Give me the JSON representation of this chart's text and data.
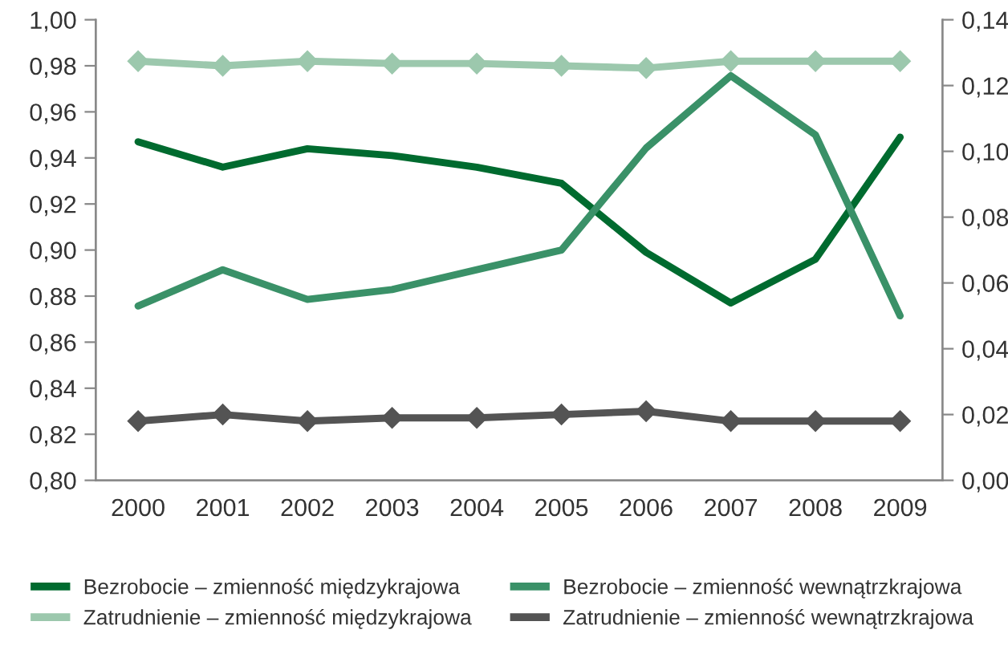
{
  "chart_data": {
    "type": "line",
    "categories": [
      "2000",
      "2001",
      "2002",
      "2003",
      "2004",
      "2005",
      "2006",
      "2007",
      "2008",
      "2009"
    ],
    "series": [
      {
        "name": "Bezrobocie – zmienność międzykrajowa",
        "color": "#006b2f",
        "marker": "none",
        "values": [
          0.947,
          0.936,
          0.944,
          0.941,
          0.936,
          0.929,
          0.899,
          0.877,
          0.896,
          0.949
        ]
      },
      {
        "name": "Bezrobocie – zmienność wewnątrzkrajowa",
        "color": "#3a9168",
        "marker": "none",
        "axis": "y2",
        "values": [
          0.053,
          0.064,
          0.055,
          0.058,
          0.064,
          0.07,
          0.101,
          0.123,
          0.105,
          0.05
        ]
      },
      {
        "name": "Zatrudnienie – zmienność międzykrajowa",
        "color": "#9cc8ad",
        "marker": "diamond",
        "values": [
          0.982,
          0.98,
          0.982,
          0.981,
          0.981,
          0.98,
          0.979,
          0.982,
          0.982,
          0.982
        ]
      },
      {
        "name": "Zatrudnienie – zmienność wewnątrzkrajowa",
        "color": "#545454",
        "marker": "diamond",
        "axis": "y2",
        "values": [
          0.018,
          0.02,
          0.018,
          0.019,
          0.019,
          0.02,
          0.021,
          0.018,
          0.018,
          0.018
        ]
      }
    ],
    "ylim": [
      0.8,
      1.0
    ],
    "yticks": [
      {
        "value": 0.8,
        "label": "0,80"
      },
      {
        "value": 0.82,
        "label": "0,82"
      },
      {
        "value": 0.84,
        "label": "0,84"
      },
      {
        "value": 0.86,
        "label": "0,86"
      },
      {
        "value": 0.88,
        "label": "0,88"
      },
      {
        "value": 0.9,
        "label": "0,90"
      },
      {
        "value": 0.92,
        "label": "0,92"
      },
      {
        "value": 0.94,
        "label": "0,94"
      },
      {
        "value": 0.96,
        "label": "0,96"
      },
      {
        "value": 0.98,
        "label": "0,98"
      },
      {
        "value": 1.0,
        "label": "1,00"
      }
    ],
    "y2lim": [
      0,
      0.14
    ],
    "y2ticks": [
      {
        "value": 0,
        "label": "0,00"
      },
      {
        "value": 0.02,
        "label": "0,02"
      },
      {
        "value": 0.04,
        "label": "0,04"
      },
      {
        "value": 0.06,
        "label": "0,06"
      },
      {
        "value": 0.08,
        "label": "0,08"
      },
      {
        "value": 0.1,
        "label": "0,10"
      },
      {
        "value": 0.12,
        "label": "0,12"
      },
      {
        "value": 0.14,
        "label": "0,14"
      }
    ],
    "grid": false,
    "legend": "bottom",
    "line_style": "solid"
  }
}
